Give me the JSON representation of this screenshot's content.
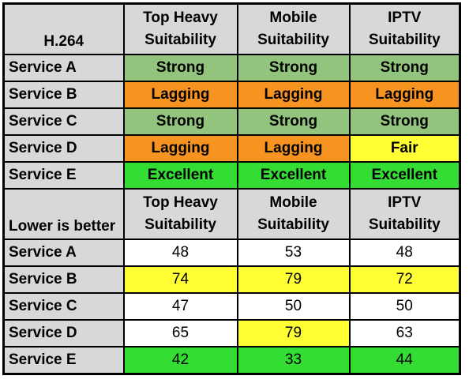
{
  "top_table": {
    "corner_label": "H.264",
    "headers": [
      [
        "Top Heavy",
        "Suitability"
      ],
      [
        "Mobile",
        "Suitability"
      ],
      [
        "IPTV",
        "Suitability"
      ]
    ],
    "rows": [
      {
        "service": "Service A",
        "cells": [
          "Strong",
          "Strong",
          "Strong"
        ]
      },
      {
        "service": "Service B",
        "cells": [
          "Lagging",
          "Lagging",
          "Lagging"
        ]
      },
      {
        "service": "Service C",
        "cells": [
          "Strong",
          "Strong",
          "Strong"
        ]
      },
      {
        "service": "Service D",
        "cells": [
          "Lagging",
          "Lagging",
          "Fair"
        ]
      },
      {
        "service": "Service E",
        "cells": [
          "Excellent",
          "Excellent",
          "Excellent"
        ]
      }
    ]
  },
  "bottom_table": {
    "corner_label": "Lower is better",
    "headers": [
      [
        "Top Heavy",
        "Suitability"
      ],
      [
        "Mobile",
        "Suitability"
      ],
      [
        "IPTV",
        "Suitability"
      ]
    ],
    "rows": [
      {
        "service": "Service A",
        "cells": [
          "48",
          "53",
          "48"
        ]
      },
      {
        "service": "Service B",
        "cells": [
          "74",
          "79",
          "72"
        ]
      },
      {
        "service": "Service C",
        "cells": [
          "47",
          "50",
          "50"
        ]
      },
      {
        "service": "Service D",
        "cells": [
          "65",
          "79",
          "63"
        ]
      },
      {
        "service": "Service E",
        "cells": [
          "42",
          "33",
          "44"
        ]
      }
    ]
  },
  "colors": {
    "header_bg": "#d8d8d8",
    "strong": "#93c47d",
    "lagging": "#f79320",
    "fair": "#ffff33",
    "excellent": "#33dd33",
    "highlight_yellow": "#ffff33",
    "highlight_green": "#33dd33"
  }
}
